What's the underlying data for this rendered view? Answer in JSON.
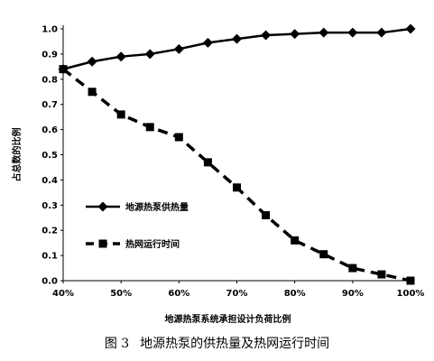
{
  "caption": {
    "number": "图 3",
    "text": "地源热泵的供热量及热网运行时间"
  },
  "chart_data": {
    "type": "line",
    "xlabel": "地源热泵系统承担设计负荷比例",
    "ylabel": "占总数的比例",
    "xlim": [
      0.4,
      1.0
    ],
    "ylim": [
      0.0,
      1.0
    ],
    "x_ticks": [
      "40%",
      "50%",
      "60%",
      "70%",
      "80%",
      "90%",
      "100%"
    ],
    "y_ticks": [
      "0.0",
      "0.1",
      "0.2",
      "0.3",
      "0.4",
      "0.5",
      "0.6",
      "0.7",
      "0.8",
      "0.9",
      "1.0"
    ],
    "grid": false,
    "legend_position": "center-left",
    "x": [
      0.4,
      0.45,
      0.5,
      0.55,
      0.6,
      0.65,
      0.7,
      0.75,
      0.8,
      0.85,
      0.9,
      0.95,
      1.0
    ],
    "series": [
      {
        "name": "地源热泵供热量",
        "marker": "diamond",
        "style": "solid",
        "color": "#000000",
        "values": [
          0.84,
          0.87,
          0.89,
          0.9,
          0.92,
          0.945,
          0.96,
          0.975,
          0.98,
          0.985,
          0.985,
          0.985,
          1.0
        ]
      },
      {
        "name": "热网运行时间",
        "marker": "square",
        "style": "dashed",
        "color": "#000000",
        "values": [
          0.84,
          0.75,
          0.66,
          0.61,
          0.57,
          0.47,
          0.37,
          0.26,
          0.16,
          0.105,
          0.05,
          0.025,
          0.0
        ]
      }
    ]
  }
}
